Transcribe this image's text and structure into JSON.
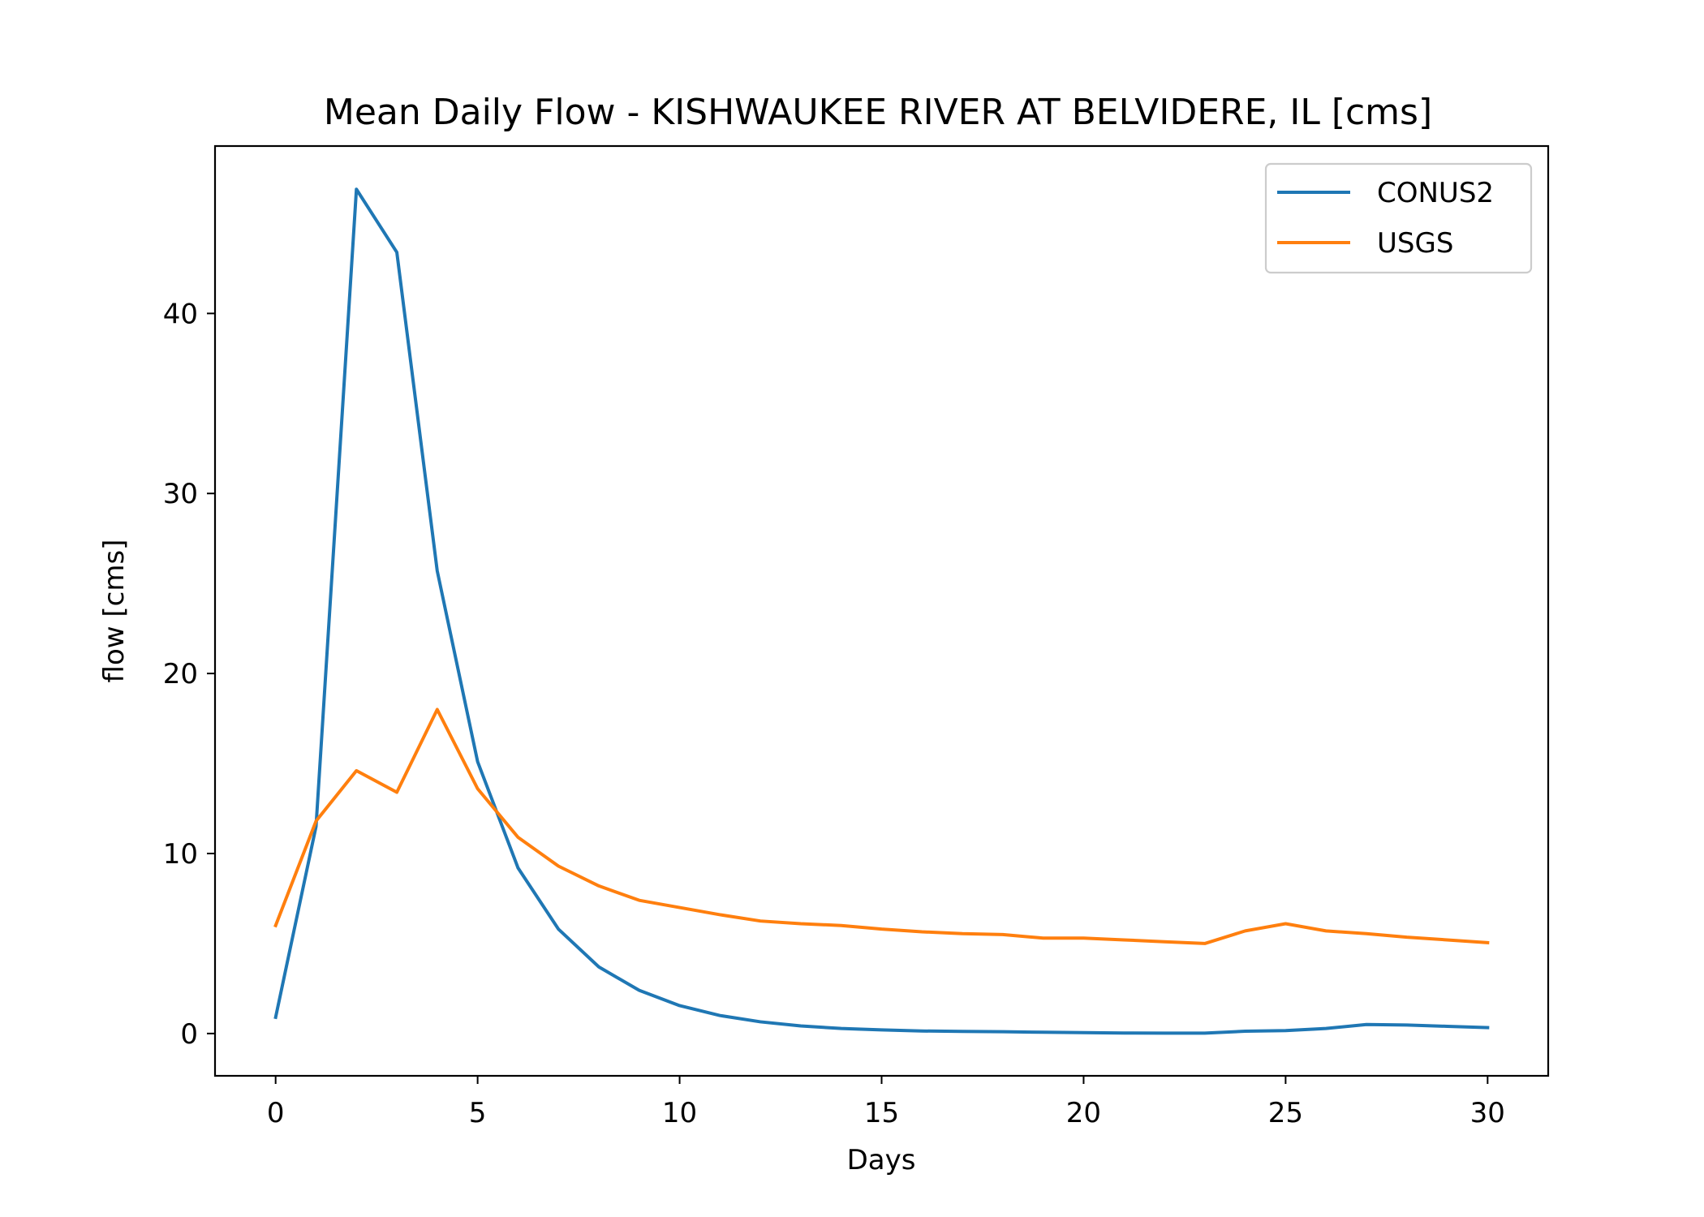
{
  "chart_data": {
    "type": "line",
    "title": "Mean Daily Flow - KISHWAUKEE RIVER AT BELVIDERE, IL [cms]",
    "xlabel": "Days",
    "ylabel": "flow [cms]",
    "xlim": [
      -1.5,
      31.5
    ],
    "ylim": [
      -2.35,
      49.3
    ],
    "xticks": [
      0,
      5,
      10,
      15,
      20,
      25,
      30
    ],
    "yticks": [
      0,
      10,
      20,
      30,
      40
    ],
    "grid": false,
    "legend_position": "top-right",
    "x": [
      0,
      1,
      2,
      3,
      4,
      5,
      6,
      7,
      8,
      9,
      10,
      11,
      12,
      13,
      14,
      15,
      16,
      17,
      18,
      19,
      20,
      21,
      22,
      23,
      24,
      25,
      26,
      27,
      28,
      29,
      30
    ],
    "series": [
      {
        "name": "CONUS2",
        "color": "#1f77b4",
        "values": [
          0.9,
          11.5,
          46.9,
          43.4,
          25.7,
          15.1,
          9.2,
          5.8,
          3.7,
          2.4,
          1.55,
          1.0,
          0.65,
          0.42,
          0.28,
          0.2,
          0.14,
          0.12,
          0.1,
          0.07,
          0.05,
          0.03,
          0.02,
          0.02,
          0.13,
          0.16,
          0.28,
          0.5,
          0.47,
          0.4,
          0.33
        ]
      },
      {
        "name": "USGS",
        "color": "#ff7f0e",
        "values": [
          6.0,
          11.8,
          14.6,
          13.4,
          18.0,
          13.6,
          10.9,
          9.3,
          8.2,
          7.4,
          7.0,
          6.6,
          6.25,
          6.1,
          6.0,
          5.8,
          5.65,
          5.55,
          5.5,
          5.3,
          5.3,
          5.2,
          5.1,
          5.0,
          5.7,
          6.1,
          5.7,
          5.55,
          5.35,
          5.2,
          5.05
        ]
      }
    ]
  }
}
